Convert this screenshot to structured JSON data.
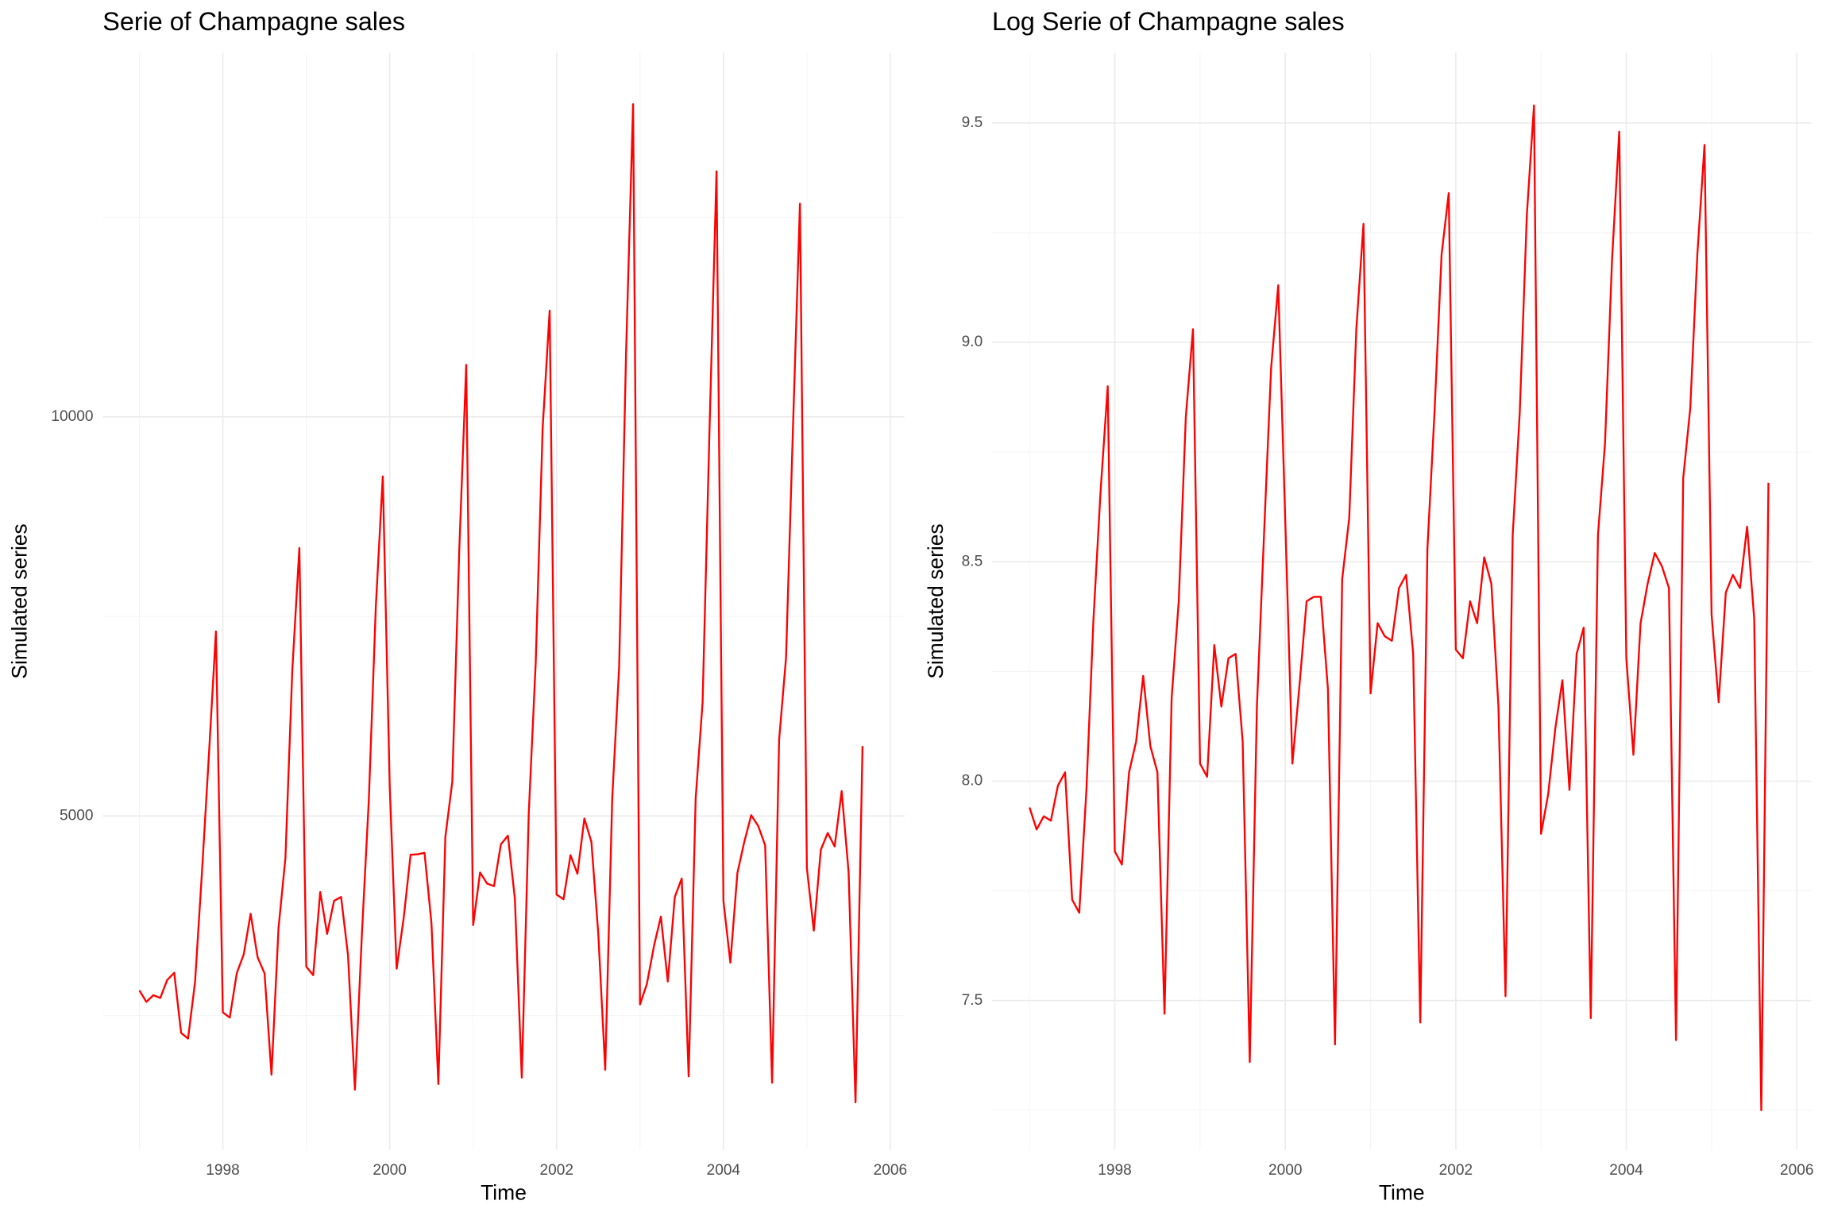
{
  "chart_data": [
    {
      "type": "line",
      "title": "Serie of Champagne sales",
      "x_label": "Time",
      "y_label": "Simulated series",
      "color": "#ff0000",
      "grid": true,
      "xlim": [
        1996.56,
        2006.17
      ],
      "xticks": [
        1998,
        2000,
        2002,
        2004,
        2006
      ],
      "ylim": [
        819,
        14561
      ],
      "yticks": [
        5000,
        10000
      ],
      "x": [
        1997,
        1997.083,
        1997.167,
        1997.25,
        1997.333,
        1997.417,
        1997.5,
        1997.583,
        1997.667,
        1997.75,
        1997.833,
        1997.917,
        1998,
        1998.083,
        1998.167,
        1998.25,
        1998.333,
        1998.417,
        1998.5,
        1998.583,
        1998.667,
        1998.75,
        1998.833,
        1998.917,
        1999,
        1999.083,
        1999.167,
        1999.25,
        1999.333,
        1999.417,
        1999.5,
        1999.583,
        1999.667,
        1999.75,
        1999.833,
        1999.917,
        2000,
        2000.083,
        2000.167,
        2000.25,
        2000.333,
        2000.417,
        2000.5,
        2000.583,
        2000.667,
        2000.75,
        2000.833,
        2000.917,
        2001,
        2001.083,
        2001.167,
        2001.25,
        2001.333,
        2001.417,
        2001.5,
        2001.583,
        2001.667,
        2001.75,
        2001.833,
        2001.917,
        2002,
        2002.083,
        2002.167,
        2002.25,
        2002.333,
        2002.417,
        2002.5,
        2002.583,
        2002.667,
        2002.75,
        2002.833,
        2002.917,
        2003,
        2003.083,
        2003.167,
        2003.25,
        2003.333,
        2003.417,
        2003.5,
        2003.583,
        2003.667,
        2003.75,
        2003.833,
        2003.917,
        2004,
        2004.083,
        2004.167,
        2004.25,
        2004.333,
        2004.417,
        2004.5,
        2004.583,
        2004.667,
        2004.75,
        2004.833,
        2004.917,
        2005,
        2005.083,
        2005.167,
        2005.25,
        2005.333,
        2005.417,
        2005.5,
        2005.583,
        2005.667
      ],
      "values": [
        2815,
        2672,
        2755,
        2721,
        2946,
        3036,
        2282,
        2212,
        2922,
        4301,
        5764,
        7312,
        2541,
        2475,
        3031,
        3266,
        3776,
        3230,
        3028,
        1759,
        3595,
        4474,
        6838,
        8357,
        3113,
        3006,
        4047,
        3523,
        3937,
        3986,
        3260,
        1573,
        3528,
        5211,
        7614,
        9254,
        5375,
        3088,
        3718,
        4514,
        4520,
        4539,
        3663,
        1643,
        4739,
        5428,
        8314,
        10651,
        3633,
        4292,
        4154,
        4121,
        4647,
        4753,
        3965,
        1723,
        5048,
        6922,
        9858,
        11331,
        4016,
        3957,
        4510,
        4276,
        4968,
        4677,
        3523,
        1821,
        5222,
        6872,
        10803,
        13916,
        2639,
        2899,
        3370,
        3740,
        2927,
        3986,
        4217,
        1738,
        5221,
        6424,
        9842,
        13076,
        3934,
        3162,
        4286,
        4676,
        5010,
        4874,
        4633,
        1659,
        5951,
        6981,
        9851,
        12670,
        4348,
        3564,
        4577,
        4788,
        4618,
        5312,
        4298,
        1413,
        5877
      ]
    },
    {
      "type": "line",
      "title": "Log Serie of Champagne sales",
      "x_label": "Time",
      "y_label": "Simulated series",
      "color": "#ff0000",
      "grid": true,
      "xlim": [
        1996.56,
        2006.17
      ],
      "xticks": [
        1998,
        2000,
        2002,
        2004,
        2006
      ],
      "ylim": [
        7.16,
        9.66
      ],
      "yticks": [
        7.5,
        {
          "value": 8,
          "label": "8.0"
        },
        8.5,
        {
          "value": 9,
          "label": "9.0"
        },
        9.5
      ],
      "x": [
        1997,
        1997.083,
        1997.167,
        1997.25,
        1997.333,
        1997.417,
        1997.5,
        1997.583,
        1997.667,
        1997.75,
        1997.833,
        1997.917,
        1998,
        1998.083,
        1998.167,
        1998.25,
        1998.333,
        1998.417,
        1998.5,
        1998.583,
        1998.667,
        1998.75,
        1998.833,
        1998.917,
        1999,
        1999.083,
        1999.167,
        1999.25,
        1999.333,
        1999.417,
        1999.5,
        1999.583,
        1999.667,
        1999.75,
        1999.833,
        1999.917,
        2000,
        2000.083,
        2000.167,
        2000.25,
        2000.333,
        2000.417,
        2000.5,
        2000.583,
        2000.667,
        2000.75,
        2000.833,
        2000.917,
        2001,
        2001.083,
        2001.167,
        2001.25,
        2001.333,
        2001.417,
        2001.5,
        2001.583,
        2001.667,
        2001.75,
        2001.833,
        2001.917,
        2002,
        2002.083,
        2002.167,
        2002.25,
        2002.333,
        2002.417,
        2002.5,
        2002.583,
        2002.667,
        2002.75,
        2002.833,
        2002.917,
        2003,
        2003.083,
        2003.167,
        2003.25,
        2003.333,
        2003.417,
        2003.5,
        2003.583,
        2003.667,
        2003.75,
        2003.833,
        2003.917,
        2004,
        2004.083,
        2004.167,
        2004.25,
        2004.333,
        2004.417,
        2004.5,
        2004.583,
        2004.667,
        2004.75,
        2004.833,
        2004.917,
        2005,
        2005.083,
        2005.167,
        2005.25,
        2005.333,
        2005.417,
        2005.5,
        2005.583,
        2005.667
      ],
      "values": [
        7.94,
        7.89,
        7.92,
        7.91,
        7.99,
        8.02,
        7.73,
        7.7,
        7.98,
        8.37,
        8.66,
        8.9,
        7.84,
        7.81,
        8.02,
        8.09,
        8.24,
        8.08,
        8.02,
        7.47,
        8.19,
        8.41,
        8.83,
        9.03,
        8.04,
        8.01,
        8.31,
        8.17,
        8.28,
        8.29,
        8.09,
        7.36,
        8.17,
        8.56,
        8.94,
        9.13,
        8.59,
        8.04,
        8.22,
        8.41,
        8.42,
        8.42,
        8.21,
        7.4,
        8.46,
        8.6,
        9.03,
        9.27,
        8.2,
        8.36,
        8.33,
        8.32,
        8.44,
        8.47,
        8.29,
        7.45,
        8.53,
        8.84,
        9.2,
        9.34,
        8.3,
        8.28,
        8.41,
        8.36,
        8.51,
        8.45,
        8.17,
        7.51,
        8.56,
        8.84,
        9.29,
        9.54,
        7.88,
        7.97,
        8.12,
        8.23,
        7.98,
        8.29,
        8.35,
        7.46,
        8.56,
        8.77,
        9.19,
        9.48,
        8.28,
        8.06,
        8.36,
        8.45,
        8.52,
        8.49,
        8.44,
        7.41,
        8.69,
        8.85,
        9.2,
        9.45,
        8.38,
        8.18,
        8.43,
        8.47,
        8.44,
        8.58,
        8.37,
        7.25,
        8.68
      ]
    }
  ]
}
